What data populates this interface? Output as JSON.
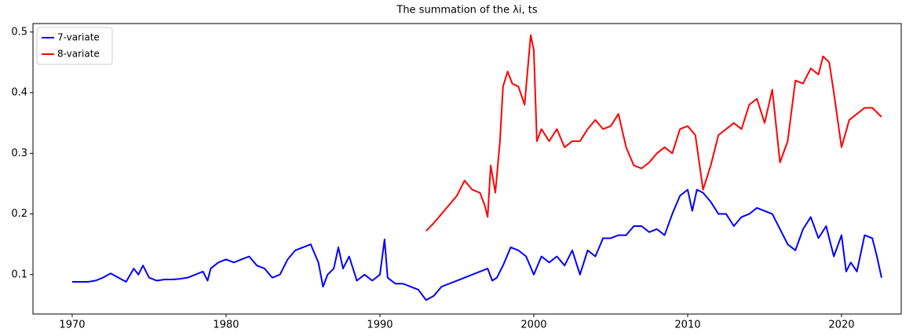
{
  "chart_data": {
    "type": "line",
    "title": "The summation of the λi, ts",
    "xlim": [
      1967.45,
      2023.88
    ],
    "ylim": [
      0.035,
      0.514
    ],
    "xticks": [
      1970,
      1980,
      1990,
      2000,
      2010,
      2020
    ],
    "yticks": [
      0.1,
      0.2,
      0.3,
      0.4,
      0.5
    ],
    "grid": false,
    "legend": "upper left",
    "series": [
      {
        "name": "7-variate",
        "color": "#0000ff",
        "x": [
          1970.0,
          1970.5,
          1971.0,
          1971.5,
          1972.0,
          1972.5,
          1973.0,
          1973.5,
          1974.0,
          1974.3,
          1974.6,
          1975.0,
          1975.5,
          1976.0,
          1976.5,
          1977.0,
          1977.5,
          1978.0,
          1978.5,
          1978.8,
          1979.0,
          1979.5,
          1980.0,
          1980.5,
          1981.0,
          1981.5,
          1982.0,
          1982.5,
          1983.0,
          1983.5,
          1984.0,
          1984.5,
          1985.0,
          1985.5,
          1986.0,
          1986.3,
          1986.6,
          1987.0,
          1987.3,
          1987.6,
          1988.0,
          1988.5,
          1989.0,
          1989.5,
          1990.0,
          1990.3,
          1990.5,
          1991.0,
          1991.5,
          1992.0,
          1992.5,
          1993.0,
          1993.5,
          1994.0,
          1994.5,
          1995.0,
          1995.5,
          1996.0,
          1996.5,
          1997.0,
          1997.3,
          1997.6,
          1998.0,
          1998.5,
          1999.0,
          1999.5,
          2000.0,
          2000.5,
          2001.0,
          2001.5,
          2002.0,
          2002.5,
          2003.0,
          2003.5,
          2004.0,
          2004.5,
          2005.0,
          2005.5,
          2006.0,
          2006.5,
          2007.0,
          2007.5,
          2008.0,
          2008.5,
          2009.0,
          2009.5,
          2010.0,
          2010.3,
          2010.6,
          2011.0,
          2011.5,
          2012.0,
          2012.5,
          2013.0,
          2013.5,
          2014.0,
          2014.5,
          2015.0,
          2015.5,
          2016.0,
          2016.5,
          2017.0,
          2017.5,
          2018.0,
          2018.5,
          2019.0,
          2019.5,
          2020.0,
          2020.3,
          2020.6,
          2021.0,
          2021.5,
          2022.0,
          2022.3,
          2022.6
        ],
        "values": [
          0.088,
          0.088,
          0.088,
          0.09,
          0.095,
          0.102,
          0.095,
          0.088,
          0.11,
          0.1,
          0.115,
          0.095,
          0.09,
          0.092,
          0.092,
          0.093,
          0.095,
          0.1,
          0.105,
          0.09,
          0.11,
          0.12,
          0.125,
          0.12,
          0.125,
          0.13,
          0.115,
          0.11,
          0.095,
          0.1,
          0.125,
          0.14,
          0.145,
          0.15,
          0.12,
          0.08,
          0.1,
          0.11,
          0.145,
          0.11,
          0.13,
          0.09,
          0.1,
          0.09,
          0.1,
          0.158,
          0.095,
          0.085,
          0.085,
          0.08,
          0.075,
          0.058,
          0.065,
          0.08,
          0.085,
          0.09,
          0.095,
          0.1,
          0.105,
          0.11,
          0.09,
          0.095,
          0.115,
          0.145,
          0.14,
          0.13,
          0.1,
          0.13,
          0.12,
          0.13,
          0.115,
          0.14,
          0.1,
          0.14,
          0.13,
          0.16,
          0.16,
          0.165,
          0.165,
          0.18,
          0.18,
          0.17,
          0.175,
          0.165,
          0.2,
          0.23,
          0.24,
          0.205,
          0.24,
          0.235,
          0.22,
          0.2,
          0.2,
          0.18,
          0.195,
          0.2,
          0.21,
          0.205,
          0.2,
          0.175,
          0.15,
          0.14,
          0.175,
          0.195,
          0.16,
          0.18,
          0.13,
          0.165,
          0.105,
          0.12,
          0.105,
          0.165,
          0.16,
          0.13,
          0.095
        ]
      },
      {
        "name": "8-variate",
        "color": "#ff0000",
        "x": [
          1993.0,
          1993.5,
          1994.0,
          1994.5,
          1995.0,
          1995.5,
          1996.0,
          1996.5,
          1996.8,
          1997.0,
          1997.2,
          1997.5,
          1997.8,
          1998.0,
          1998.3,
          1998.6,
          1999.0,
          1999.4,
          1999.8,
          2000.0,
          2000.2,
          2000.5,
          2001.0,
          2001.5,
          2002.0,
          2002.5,
          2003.0,
          2003.5,
          2004.0,
          2004.5,
          2005.0,
          2005.5,
          2006.0,
          2006.5,
          2007.0,
          2007.5,
          2008.0,
          2008.5,
          2009.0,
          2009.5,
          2010.0,
          2010.5,
          2011.0,
          2011.5,
          2012.0,
          2012.5,
          2013.0,
          2013.5,
          2014.0,
          2014.5,
          2015.0,
          2015.5,
          2016.0,
          2016.5,
          2017.0,
          2017.5,
          2018.0,
          2018.5,
          2018.8,
          2019.2,
          2019.5,
          2020.0,
          2020.5,
          2021.0,
          2021.5,
          2022.0,
          2022.6
        ],
        "values": [
          0.172,
          0.185,
          0.2,
          0.215,
          0.23,
          0.255,
          0.24,
          0.235,
          0.215,
          0.195,
          0.28,
          0.235,
          0.32,
          0.41,
          0.435,
          0.415,
          0.41,
          0.38,
          0.495,
          0.47,
          0.32,
          0.34,
          0.32,
          0.34,
          0.31,
          0.32,
          0.32,
          0.34,
          0.355,
          0.34,
          0.345,
          0.365,
          0.31,
          0.28,
          0.275,
          0.285,
          0.3,
          0.31,
          0.3,
          0.34,
          0.345,
          0.33,
          0.24,
          0.28,
          0.33,
          0.34,
          0.35,
          0.34,
          0.38,
          0.39,
          0.35,
          0.405,
          0.285,
          0.32,
          0.42,
          0.415,
          0.44,
          0.43,
          0.46,
          0.45,
          0.4,
          0.31,
          0.355,
          0.365,
          0.375,
          0.375,
          0.36
        ]
      }
    ]
  }
}
